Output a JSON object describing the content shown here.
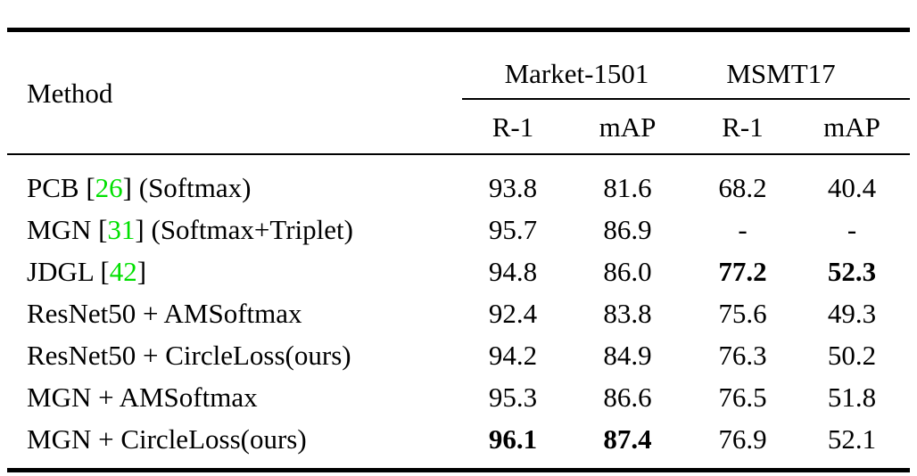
{
  "colors": {
    "citation_green": "#00e000",
    "text_black": "#000000",
    "background": "#ffffff"
  },
  "table": {
    "method_header": "Method",
    "group_headers": [
      {
        "label": "Market-1501"
      },
      {
        "label": "MSMT17"
      }
    ],
    "sub_headers": [
      "R-1",
      "mAP",
      "R-1",
      "mAP"
    ],
    "rows": [
      {
        "method": [
          {
            "text": "PCB ["
          },
          {
            "text": "26",
            "green": true
          },
          {
            "text": "] (Softmax)"
          }
        ],
        "values": [
          {
            "text": "93.8"
          },
          {
            "text": "81.6"
          },
          {
            "text": "68.2"
          },
          {
            "text": "40.4"
          }
        ]
      },
      {
        "method": [
          {
            "text": "MGN ["
          },
          {
            "text": "31",
            "green": true
          },
          {
            "text": "] (Softmax+Triplet)"
          }
        ],
        "values": [
          {
            "text": "95.7"
          },
          {
            "text": "86.9"
          },
          {
            "text": "-"
          },
          {
            "text": "-"
          }
        ]
      },
      {
        "method": [
          {
            "text": "JDGL ["
          },
          {
            "text": "42",
            "green": true
          },
          {
            "text": "]"
          }
        ],
        "values": [
          {
            "text": "94.8"
          },
          {
            "text": "86.0"
          },
          {
            "text": "77.2",
            "bold": true
          },
          {
            "text": "52.3",
            "bold": true
          }
        ]
      },
      {
        "method": [
          {
            "text": "ResNet50 + AMSoftmax"
          }
        ],
        "values": [
          {
            "text": "92.4"
          },
          {
            "text": "83.8"
          },
          {
            "text": "75.6"
          },
          {
            "text": "49.3"
          }
        ]
      },
      {
        "method": [
          {
            "text": "ResNet50 + CircleLoss(ours)"
          }
        ],
        "values": [
          {
            "text": "94.2"
          },
          {
            "text": "84.9"
          },
          {
            "text": "76.3"
          },
          {
            "text": "50.2"
          }
        ]
      },
      {
        "method": [
          {
            "text": "MGN + AMSoftmax"
          }
        ],
        "values": [
          {
            "text": "95.3"
          },
          {
            "text": "86.6"
          },
          {
            "text": "76.5"
          },
          {
            "text": "51.8"
          }
        ]
      },
      {
        "method": [
          {
            "text": "MGN + CircleLoss(ours)"
          }
        ],
        "values": [
          {
            "text": "96.1",
            "bold": true
          },
          {
            "text": "87.4",
            "bold": true
          },
          {
            "text": "76.9"
          },
          {
            "text": "52.1"
          }
        ]
      }
    ]
  }
}
